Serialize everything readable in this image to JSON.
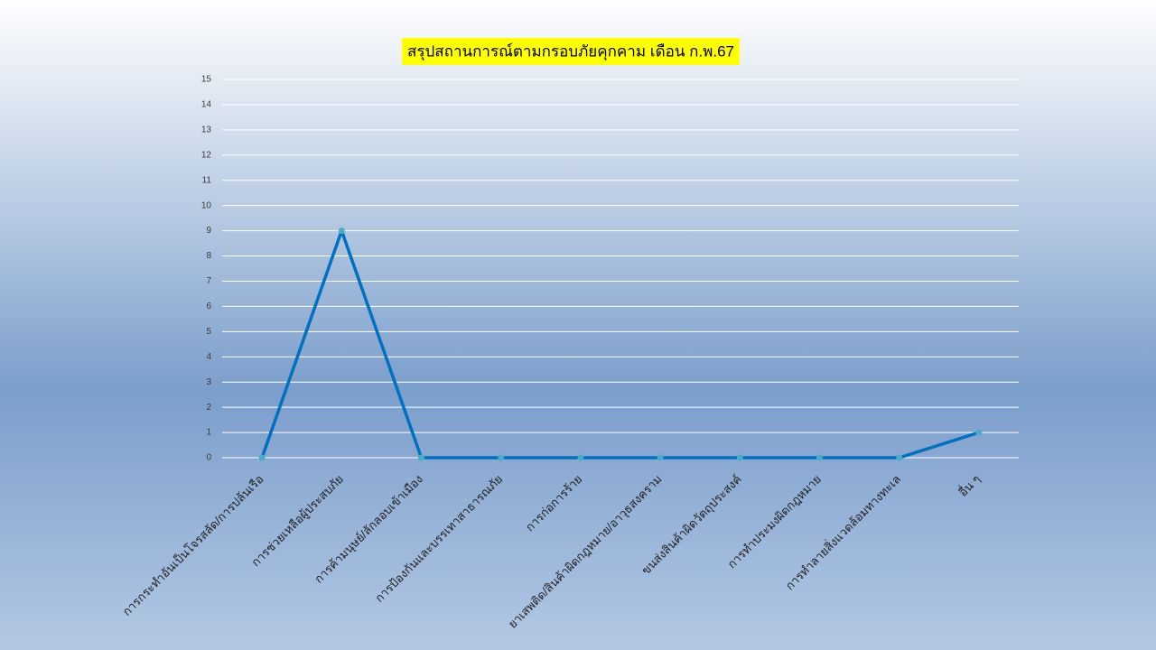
{
  "chart_data": {
    "type": "line",
    "title": "สรุปสถานการณ์ตามกรอบภัยคุกคาม เดือน ก.พ.67",
    "categories": [
      "การกระทำอันเป็นโจรสลัด/การปล้นเรือ",
      "การช่วยเหลือผู้ประสบภัย",
      "การค้ามนุษย์/ลักลอบเข้าเมือง",
      "การป้องกันและบรรเทาสาธารณภัย",
      "การก่อการร้าย",
      "ยาเสพติด/สินค้าผิดกฎหมาย/อาวุธสงคราม",
      "ขนส่งสินค้าผิดวัตถุประสงค์",
      "การทำประมงผิดกฎหมาย",
      "การทำลายสิ่งแวดล้อมทางทะเล",
      "อื่น ๆ"
    ],
    "values": [
      0,
      9,
      0,
      0,
      0,
      0,
      0,
      0,
      0,
      1
    ],
    "color": "#0070c0",
    "marker_color": "#4bacc6",
    "ylim": [
      0,
      15
    ],
    "yticks": [
      0,
      1,
      2,
      3,
      4,
      5,
      6,
      7,
      8,
      9,
      10,
      11,
      12,
      13,
      14,
      15
    ],
    "grid": true
  }
}
